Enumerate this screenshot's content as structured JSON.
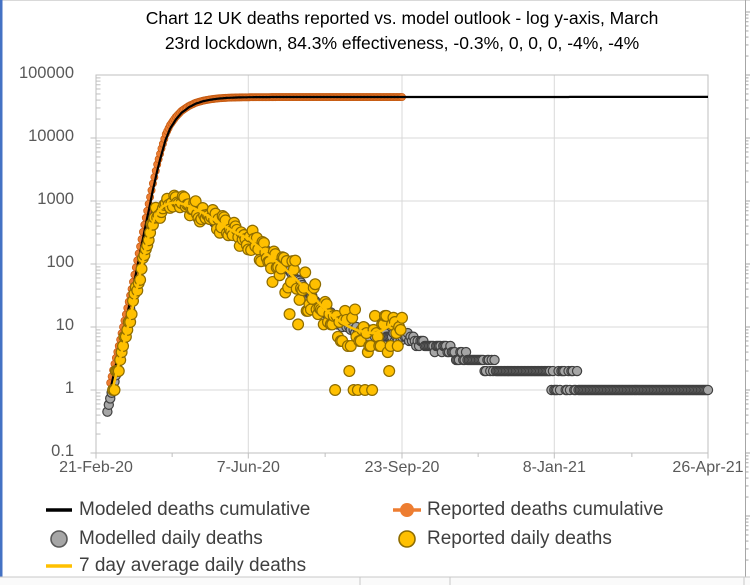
{
  "chart_data": {
    "type": "line+scatter",
    "title_line1": "Chart 12 UK deaths reported vs. model outlook - log y-axis, March",
    "title_line2": "23rd lockdown, 84.3% effectiveness, -0.3%, 0, 0, 0, -4%, -4%",
    "x_axis": {
      "unit": "days since 21-Feb-20",
      "tick_labels": [
        "21-Feb-20",
        "7-Jun-20",
        "23-Sep-20",
        "8-Jan-21",
        "26-Apr-21"
      ],
      "tick_days": [
        0,
        107,
        215,
        322,
        430
      ],
      "range_days": [
        0,
        430
      ]
    },
    "y_axis": {
      "scale": "log",
      "tick_labels": [
        "100000",
        "10000",
        "1000",
        "100",
        "10",
        "1",
        "0.1"
      ],
      "tick_values": [
        100000,
        10000,
        1000,
        100,
        10,
        1,
        0.1
      ],
      "range": [
        0.1,
        100000
      ],
      "grid": true
    },
    "legend": {
      "position": "bottom",
      "columns": 2
    },
    "series": [
      {
        "id": "modeled_cumulative",
        "name": "Modeled deaths cumulative",
        "type": "line",
        "color": "#000000",
        "line_width": 2.2,
        "points": [
          [
            10,
            1
          ],
          [
            13,
            2
          ],
          [
            16,
            4
          ],
          [
            19,
            8
          ],
          [
            22,
            16
          ],
          [
            25,
            32
          ],
          [
            28,
            70
          ],
          [
            31,
            150
          ],
          [
            34,
            330
          ],
          [
            37,
            700
          ],
          [
            40,
            1500
          ],
          [
            43,
            3000
          ],
          [
            46,
            5500
          ],
          [
            49,
            9500
          ],
          [
            52,
            14000
          ],
          [
            56,
            19500
          ],
          [
            60,
            25000
          ],
          [
            65,
            30500
          ],
          [
            70,
            35000
          ],
          [
            75,
            38200
          ],
          [
            80,
            40400
          ],
          [
            86,
            42200
          ],
          [
            92,
            43300
          ],
          [
            100,
            44100
          ],
          [
            110,
            44500
          ],
          [
            125,
            44700
          ],
          [
            160,
            44800
          ],
          [
            430,
            44850
          ]
        ]
      },
      {
        "id": "reported_cumulative",
        "name": "Reported deaths cumulative",
        "type": "scatter",
        "color": "#ED7D31",
        "border_color": "#C55A11",
        "marker_radius": 3.6,
        "points": [
          [
            10,
            1.3
          ],
          [
            13,
            2.6
          ],
          [
            16,
            5
          ],
          [
            19,
            10
          ],
          [
            22,
            20
          ],
          [
            25,
            40
          ],
          [
            28,
            88
          ],
          [
            31,
            190
          ],
          [
            34,
            420
          ],
          [
            37,
            900
          ],
          [
            40,
            1900
          ],
          [
            43,
            3800
          ],
          [
            46,
            6800
          ],
          [
            49,
            11500
          ],
          [
            52,
            16000
          ],
          [
            56,
            21500
          ],
          [
            60,
            26800
          ],
          [
            65,
            32000
          ],
          [
            70,
            36200
          ],
          [
            75,
            39000
          ],
          [
            80,
            41000
          ],
          [
            86,
            42600
          ],
          [
            92,
            43500
          ],
          [
            100,
            44100
          ],
          [
            110,
            44400
          ],
          [
            130,
            44600
          ],
          [
            215,
            44700
          ]
        ]
      },
      {
        "id": "modelled_daily",
        "name": "Modelled daily deaths",
        "type": "scatter",
        "color": "#A6A6A6",
        "border_color": "#404040",
        "marker_radius": 4.6,
        "points": [
          [
            8,
            0.45
          ],
          [
            10,
            0.7
          ],
          [
            12,
            1.1
          ],
          [
            14,
            1.8
          ],
          [
            16,
            2.9
          ],
          [
            18,
            4.7
          ],
          [
            20,
            7.5
          ],
          [
            22,
            12
          ],
          [
            24,
            19
          ],
          [
            26,
            30
          ],
          [
            28,
            48
          ],
          [
            30,
            76
          ],
          [
            32,
            120
          ],
          [
            34,
            190
          ],
          [
            36,
            300
          ],
          [
            38,
            430
          ],
          [
            40,
            560
          ],
          [
            42,
            670
          ],
          [
            44,
            760
          ],
          [
            46,
            830
          ],
          [
            48,
            880
          ],
          [
            51,
            910
          ],
          [
            54,
            920
          ],
          [
            57,
            905
          ],
          [
            60,
            870
          ],
          [
            64,
            800
          ],
          [
            68,
            720
          ],
          [
            73,
            630
          ],
          [
            78,
            540
          ],
          [
            84,
            450
          ],
          [
            90,
            380
          ],
          [
            96,
            320
          ],
          [
            102,
            285
          ],
          [
            107,
            260
          ],
          [
            112,
            215
          ],
          [
            118,
            170
          ],
          [
            124,
            130
          ],
          [
            130,
            100
          ],
          [
            136,
            75
          ],
          [
            142,
            55
          ],
          [
            148,
            38
          ],
          [
            153,
            28
          ],
          [
            158,
            21
          ],
          [
            164,
            16
          ],
          [
            170,
            13
          ],
          [
            177,
            10.5
          ],
          [
            185,
            9
          ],
          [
            195,
            8
          ],
          [
            205,
            7.4
          ],
          [
            215,
            7
          ],
          [
            222,
            6.4
          ],
          [
            230,
            5.6
          ],
          [
            238,
            5
          ],
          [
            246,
            4.3
          ],
          [
            255,
            3.6
          ],
          [
            264,
            3
          ],
          [
            275,
            2.6
          ],
          [
            288,
            2.2
          ],
          [
            300,
            1.95
          ],
          [
            315,
            1.7
          ],
          [
            330,
            1.45
          ],
          [
            345,
            1.22
          ],
          [
            360,
            1.05
          ],
          [
            380,
            1
          ],
          [
            430,
            1
          ]
        ]
      },
      {
        "id": "reported_daily",
        "name": "Reported daily deaths",
        "type": "scatter",
        "color": "#FFC000",
        "border_color": "#8E6C00",
        "marker_radius": 5.4,
        "points": [
          [
            12,
            1
          ],
          [
            16,
            2
          ],
          [
            20,
            5
          ],
          [
            24,
            13
          ],
          [
            28,
            37
          ],
          [
            32,
            90
          ],
          [
            36,
            250
          ],
          [
            40,
            480
          ],
          [
            44,
            700
          ],
          [
            48,
            850
          ],
          [
            52,
            920
          ],
          [
            56,
            945
          ],
          [
            60,
            920
          ],
          [
            66,
            815
          ],
          [
            72,
            690
          ],
          [
            80,
            555
          ],
          [
            90,
            400
          ],
          [
            100,
            300
          ],
          [
            107,
            255
          ],
          [
            118,
            158
          ],
          [
            130,
            95
          ],
          [
            142,
            53
          ],
          [
            154,
            28
          ],
          [
            166,
            15
          ],
          [
            178,
            10
          ],
          [
            190,
            8
          ],
          [
            201,
            9
          ],
          [
            208,
            11
          ],
          [
            215,
            16
          ]
        ]
      },
      {
        "id": "seven_day_avg",
        "name": "7 day average daily deaths",
        "type": "line",
        "color": "#FFC000",
        "line_width": 2.6,
        "points": [
          [
            11,
            0.9
          ],
          [
            14,
            1.7
          ],
          [
            17,
            3.2
          ],
          [
            20,
            6
          ],
          [
            23,
            11.5
          ],
          [
            26,
            22
          ],
          [
            29,
            44
          ],
          [
            32,
            90
          ],
          [
            35,
            180
          ],
          [
            38,
            340
          ],
          [
            41,
            530
          ],
          [
            44,
            700
          ],
          [
            47,
            820
          ],
          [
            50,
            890
          ],
          [
            53,
            930
          ],
          [
            56,
            945
          ],
          [
            59,
            925
          ],
          [
            62,
            880
          ],
          [
            66,
            815
          ],
          [
            70,
            740
          ],
          [
            75,
            650
          ],
          [
            80,
            555
          ],
          [
            86,
            455
          ],
          [
            92,
            380
          ],
          [
            98,
            315
          ],
          [
            103,
            280
          ],
          [
            107,
            255
          ],
          [
            112,
            205
          ],
          [
            118,
            158
          ],
          [
            124,
            122
          ],
          [
            130,
            95
          ],
          [
            136,
            72
          ],
          [
            142,
            53
          ],
          [
            148,
            38
          ],
          [
            154,
            28
          ],
          [
            160,
            20
          ],
          [
            166,
            15
          ],
          [
            172,
            12
          ],
          [
            178,
            10
          ],
          [
            184,
            8.8
          ],
          [
            190,
            8.2
          ],
          [
            196,
            8
          ],
          [
            201,
            8.8
          ],
          [
            206,
            10.5
          ],
          [
            210,
            12.5
          ],
          [
            215,
            16
          ]
        ]
      }
    ]
  }
}
